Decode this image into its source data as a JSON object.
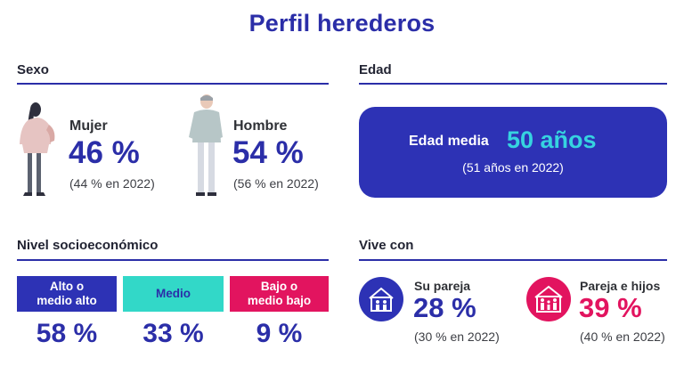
{
  "title": "Perfil herederos",
  "colors": {
    "primary": "#2b2ea8",
    "box_blue": "#2d32b5",
    "cyan": "#36d3e0",
    "pink": "#e2145f",
    "teal_box": "#32d8c8"
  },
  "sexo": {
    "heading": "Sexo",
    "mujer": {
      "label": "Mujer",
      "value": "46 %",
      "note": "(44 % en 2022)",
      "icon": "woman-figure-icon"
    },
    "hombre": {
      "label": "Hombre",
      "value": "54 %",
      "note": "(56 % en 2022)",
      "icon": "man-figure-icon"
    }
  },
  "edad": {
    "heading": "Edad",
    "label": "Edad media",
    "value": "50 años",
    "note": "(51 años en 2022)"
  },
  "nivel": {
    "heading": "Nivel socioeconómico",
    "items": [
      {
        "label_line1": "Alto o",
        "label_line2": "medio alto",
        "value": "58 %"
      },
      {
        "label_line1": "Medio",
        "label_line2": "",
        "value": "33 %"
      },
      {
        "label_line1": "Bajo o",
        "label_line2": "medio bajo",
        "value": "9 %"
      }
    ]
  },
  "vive": {
    "heading": "Vive con",
    "pareja": {
      "label": "Su pareja",
      "value": "28 %",
      "note": "(30 % en 2022)",
      "icon": "couple-house-icon"
    },
    "hijos": {
      "label": "Pareja e hijos",
      "value": "39 %",
      "note": "(40 % en 2022)",
      "icon": "family-house-icon"
    }
  }
}
